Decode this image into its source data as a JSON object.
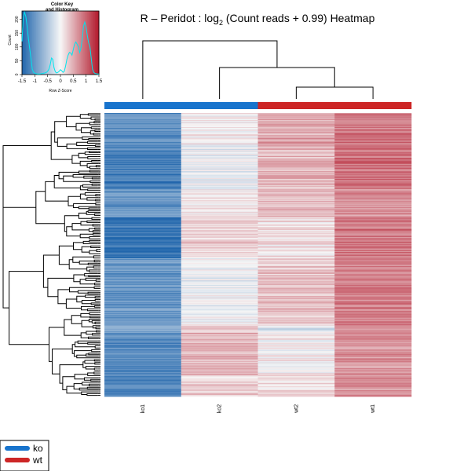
{
  "chart_data": [
    {
      "type": "heatmap",
      "title": "R – Peridot :  log",
      "title_sub": "2",
      "title_rest": " (Count reads + 0.99) Heatmap",
      "columns": [
        "ko1",
        "ko2",
        "wt2",
        "wt1"
      ],
      "column_groups": [
        "ko",
        "ko",
        "wt",
        "wt"
      ],
      "row_count": 400,
      "row_dendrogram": true,
      "column_dendrogram": true,
      "color_scale": {
        "low": "#2166ac",
        "mid": "#f7f7f7",
        "high": "#b2182b",
        "range": [
          -1.5,
          1.5
        ]
      },
      "segments": [
        {
          "rows": 45,
          "z": [
            -1.1,
            0.05,
            0.55,
            0.85
          ]
        },
        {
          "rows": 12,
          "z": [
            -1.2,
            -0.1,
            0.5,
            0.95
          ]
        },
        {
          "rows": 50,
          "z": [
            -1.3,
            -0.05,
            0.45,
            0.9
          ]
        },
        {
          "rows": 40,
          "z": [
            -1.0,
            0.1,
            0.35,
            0.7
          ]
        },
        {
          "rows": 58,
          "z": [
            -1.35,
            0.25,
            0.15,
            0.85
          ]
        },
        {
          "rows": 95,
          "z": [
            -1.0,
            -0.05,
            0.35,
            0.8
          ]
        },
        {
          "rows": 10,
          "z": [
            -0.9,
            0.3,
            -0.15,
            0.75
          ]
        },
        {
          "rows": 60,
          "z": [
            -1.1,
            0.45,
            0.05,
            0.65
          ]
        },
        {
          "rows": 30,
          "z": [
            -1.2,
            0.25,
            0.2,
            0.7
          ]
        }
      ]
    },
    {
      "type": "line",
      "title": "Color Key\nand Histogram",
      "xlabel": "Row Z-Score",
      "ylabel": "Count",
      "xlim": [
        -1.5,
        1.5
      ],
      "ylim": [
        0,
        230
      ],
      "xticks": [
        "-1.5",
        "-1",
        "-0.5",
        "0",
        "0.5",
        "1",
        "1.5"
      ],
      "yticks": [
        "0",
        "50",
        "100",
        "150",
        "200"
      ],
      "series": [
        {
          "color": "#00e5ee",
          "x": [
            -1.5,
            -1.45,
            -1.4,
            -1.35,
            -1.3,
            -1.25,
            -1.2,
            -1.15,
            -1.1,
            -1.05,
            -1.0,
            -0.95,
            -0.9,
            -0.85,
            -0.8,
            -0.75,
            -0.7,
            -0.65,
            -0.6,
            -0.55,
            -0.5,
            -0.45,
            -0.4,
            -0.35,
            -0.3,
            -0.25,
            -0.2,
            -0.15,
            -0.1,
            -0.05,
            0.0,
            0.05,
            0.1,
            0.15,
            0.2,
            0.25,
            0.3,
            0.35,
            0.4,
            0.45,
            0.5,
            0.55,
            0.6,
            0.65,
            0.7,
            0.75,
            0.8,
            0.85,
            0.9,
            0.95,
            1.0,
            1.05,
            1.1,
            1.15,
            1.2,
            1.25,
            1.3,
            1.35,
            1.4,
            1.45,
            1.5
          ],
          "y": [
            120,
            205,
            225,
            210,
            175,
            130,
            95,
            60,
            20,
            8,
            5,
            3,
            2,
            2,
            2,
            3,
            4,
            5,
            6,
            8,
            12,
            20,
            35,
            60,
            55,
            25,
            10,
            6,
            8,
            12,
            18,
            14,
            8,
            12,
            30,
            55,
            70,
            80,
            78,
            70,
            90,
            110,
            118,
            110,
            100,
            80,
            95,
            130,
            175,
            190,
            170,
            140,
            115,
            100,
            60,
            20,
            8,
            4,
            3,
            2,
            2
          ]
        }
      ]
    }
  ],
  "legend": {
    "items": [
      {
        "label": "ko",
        "color": "#1874cd"
      },
      {
        "label": "wt",
        "color": "#cd2626"
      }
    ]
  }
}
